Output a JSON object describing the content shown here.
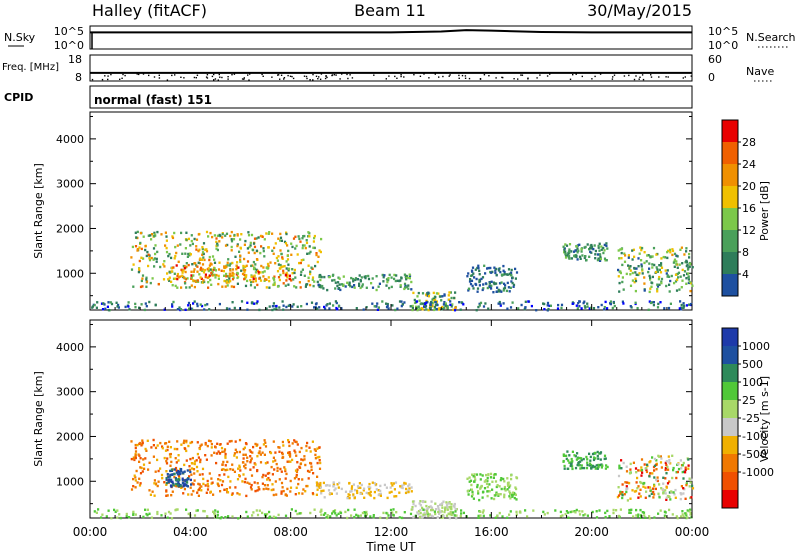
{
  "header": {
    "title": "Halley (fitACF)",
    "beam": "Beam 11",
    "date": "30/May/2015"
  },
  "colors": {
    "power": [
      "#0000ff",
      "#1e50a0",
      "#2e7d5a",
      "#4aa05a",
      "#7cc84a",
      "#f0c000",
      "#f09000",
      "#f06000",
      "#e80000"
    ],
    "velocity": [
      "#e80000",
      "#f05000",
      "#f07800",
      "#f0b000",
      "#c8c8c8",
      "#a8d868",
      "#50c838",
      "#2e8a5a",
      "#1e50a0",
      "#1e3aaa"
    ]
  },
  "chart_data": [
    {
      "type": "line",
      "panel": "nsky-nsearch",
      "left_label": "N.Sky",
      "right_label": "N.Search",
      "left_ticks": [
        "10^5",
        "10^0"
      ],
      "right_ticks": [
        "10^5",
        "10^0"
      ],
      "series": [
        {
          "x": [
            0,
            4,
            8,
            12,
            14,
            15,
            16,
            18,
            20,
            22,
            24
          ],
          "y": [
            3.6,
            3.6,
            3.6,
            3.6,
            3.8,
            4.1,
            4.0,
            3.7,
            3.6,
            3.6,
            3.6
          ]
        }
      ]
    },
    {
      "type": "line",
      "panel": "freq-nave",
      "left_label": "Freq. [MHz]",
      "right_label": "Nave",
      "left_ticks": [
        "18",
        "8"
      ],
      "right_ticks": [
        "60",
        "0"
      ],
      "series": [
        {
          "x": [
            0,
            4,
            8,
            12,
            16,
            20,
            24
          ],
          "y": [
            11.1,
            11.1,
            11.1,
            11.1,
            11.1,
            11.1,
            11.1
          ]
        }
      ]
    },
    {
      "type": "text",
      "panel": "cpid",
      "label": "CPID",
      "value": "normal (fast) 151"
    },
    {
      "type": "heatmap",
      "panel": "power",
      "ylabel": "Slant Range [km]",
      "yticks": [
        1000,
        2000,
        3000,
        4000
      ],
      "ylim": [
        180,
        4600
      ],
      "xlim": [
        0,
        24
      ],
      "colorbar": {
        "label": "Power [dB]",
        "range": [
          0,
          32
        ],
        "ticks": [
          4,
          8,
          12,
          16,
          20,
          24,
          28
        ]
      },
      "regions": [
        {
          "x0": 1.6,
          "x1": 9.2,
          "r0": 700,
          "r1": 1950,
          "v0": 8,
          "v1": 26
        },
        {
          "x0": 3.2,
          "x1": 8.0,
          "r0": 850,
          "r1": 1200,
          "v0": 16,
          "v1": 30
        },
        {
          "x0": 9.0,
          "x1": 12.8,
          "r0": 650,
          "r1": 1000,
          "v0": 6,
          "v1": 16
        },
        {
          "x0": 12.8,
          "x1": 14.6,
          "r0": 200,
          "r1": 600,
          "v0": 4,
          "v1": 22
        },
        {
          "x0": 15.0,
          "x1": 17.0,
          "r0": 600,
          "r1": 1200,
          "v0": 4,
          "v1": 12
        },
        {
          "x0": 18.8,
          "x1": 20.6,
          "r0": 1300,
          "r1": 1700,
          "v0": 6,
          "v1": 16
        },
        {
          "x0": 21.0,
          "x1": 24.0,
          "r0": 600,
          "r1": 1600,
          "v0": 6,
          "v1": 22
        },
        {
          "x0": 0.0,
          "x1": 24.0,
          "r0": 200,
          "r1": 400,
          "v0": 2,
          "v1": 12
        }
      ]
    },
    {
      "type": "heatmap",
      "panel": "velocity",
      "ylabel": "Slant Range [km]",
      "yticks": [
        1000,
        2000,
        3000,
        4000
      ],
      "ylim": [
        180,
        4600
      ],
      "xlim": [
        0,
        24
      ],
      "xlabel": "Time UT",
      "xticks": [
        "00:00",
        "04:00",
        "08:00",
        "12:00",
        "16:00",
        "20:00",
        "00:00"
      ],
      "colorbar": {
        "label": "Velocity [m s-1]",
        "ticks": [
          "1000",
          "500",
          "100",
          "25",
          "-25",
          "-100",
          "-500",
          "-1000"
        ]
      },
      "regions": [
        {
          "x0": 1.6,
          "x1": 9.2,
          "r0": 700,
          "r1": 1950,
          "v0": 1,
          "v1": 3
        },
        {
          "x0": 3.0,
          "x1": 4.0,
          "r0": 900,
          "r1": 1300,
          "v0": 7,
          "v1": 9
        },
        {
          "x0": 9.0,
          "x1": 12.8,
          "r0": 650,
          "r1": 1000,
          "v0": 3,
          "v1": 4
        },
        {
          "x0": 12.8,
          "x1": 14.6,
          "r0": 200,
          "r1": 600,
          "v0": 4,
          "v1": 5
        },
        {
          "x0": 15.0,
          "x1": 17.0,
          "r0": 600,
          "r1": 1200,
          "v0": 5,
          "v1": 6
        },
        {
          "x0": 18.8,
          "x1": 20.6,
          "r0": 1300,
          "r1": 1700,
          "v0": 6,
          "v1": 7
        },
        {
          "x0": 21.0,
          "x1": 24.0,
          "r0": 600,
          "r1": 1600,
          "v0": 0,
          "v1": 7
        },
        {
          "x0": 0.0,
          "x1": 24.0,
          "r0": 200,
          "r1": 400,
          "v0": 5,
          "v1": 6
        }
      ]
    }
  ]
}
